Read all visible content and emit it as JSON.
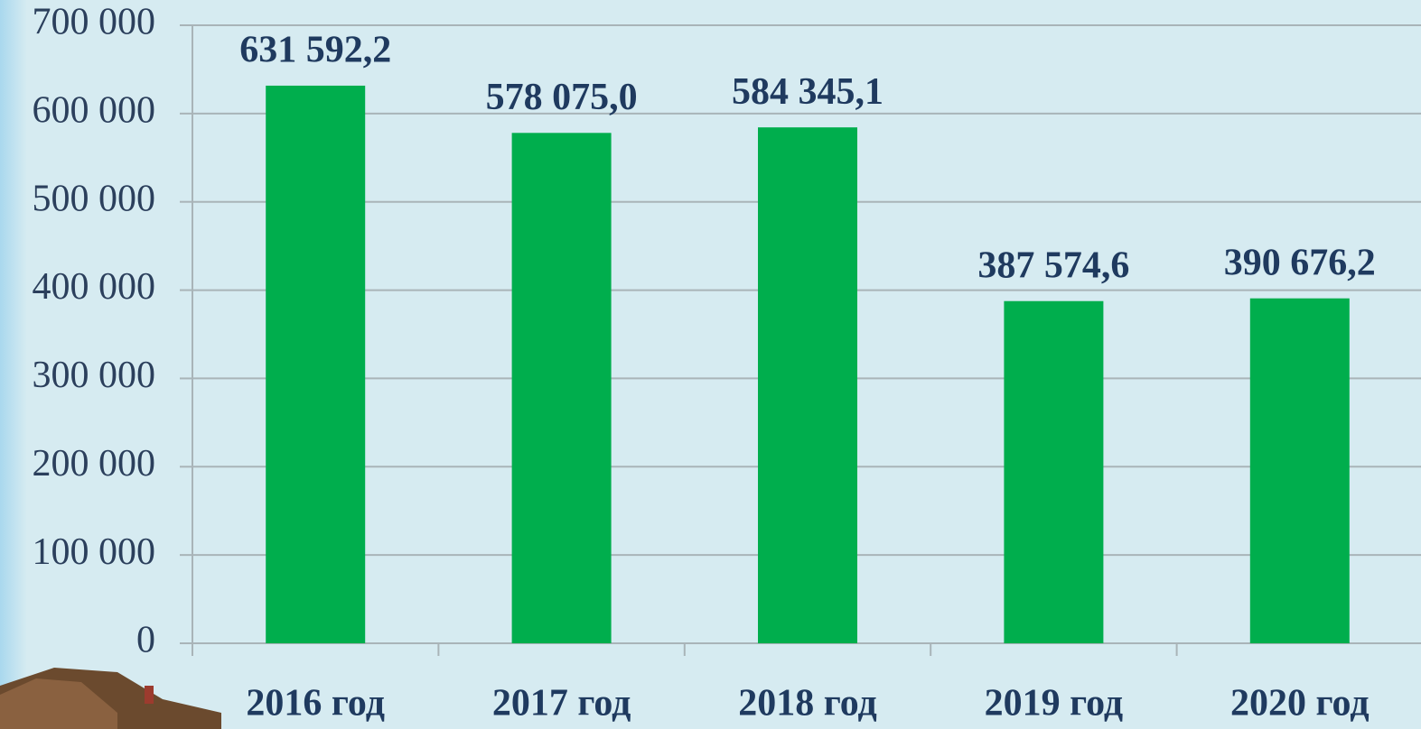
{
  "chart_data": {
    "type": "bar",
    "categories": [
      "2016 год",
      "2017 год",
      "2018 год",
      "2019 год",
      "2020 год"
    ],
    "values": [
      631592.2,
      578075.0,
      584345.1,
      387574.6,
      390676.2
    ],
    "value_labels": [
      "631 592,2",
      "578 075,0",
      "584 345,1",
      "387 574,6",
      "390 676,2"
    ],
    "color": "#00ae4d",
    "ylim": [
      0,
      700000
    ],
    "yticks": [
      0,
      {
        "value": 100000,
        "label": "100 000"
      },
      {
        "value": 200000,
        "label": "200 000"
      },
      {
        "value": 300000,
        "label": "300 000"
      },
      {
        "value": 400000,
        "label": "400 000"
      },
      {
        "value": 500000,
        "label": "500 000"
      },
      {
        "value": 600000,
        "label": "600 000"
      },
      {
        "value": 700000,
        "label": "700 000"
      }
    ],
    "grid": true
  }
}
